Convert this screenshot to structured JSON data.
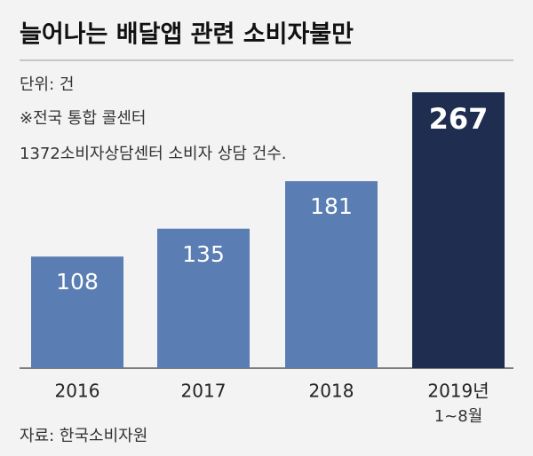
{
  "chart_data": {
    "type": "bar",
    "title": "늘어나는 배달앱 관련 소비자불만",
    "unit": "단위: 건",
    "notes": [
      "※전국 통합 콜센터",
      "1372소비자상담센터 소비자 상담 건수."
    ],
    "categories": [
      "2016",
      "2017",
      "2018",
      "2019년"
    ],
    "period_note": "1~8월",
    "values": [
      108,
      135,
      181,
      267
    ],
    "colors": [
      "#5a7db3",
      "#5a7db3",
      "#5a7db3",
      "#1e2d50"
    ],
    "source": "자료: 한국소비자원"
  }
}
